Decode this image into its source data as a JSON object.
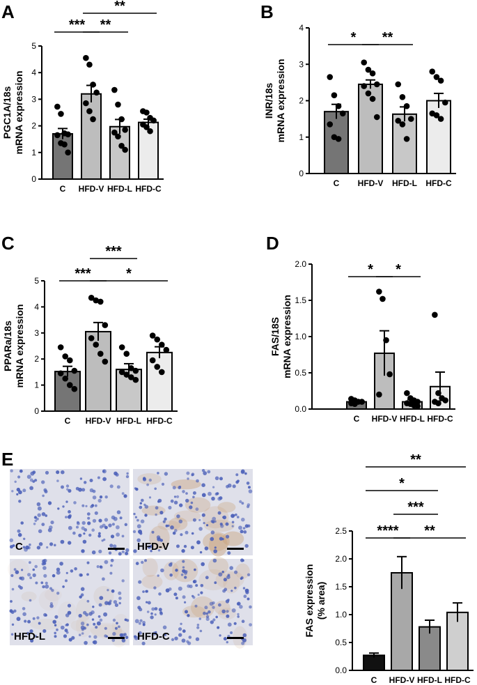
{
  "panel_letters": [
    "A",
    "B",
    "C",
    "D",
    "E"
  ],
  "micrograph_labels": [
    "C",
    "HFD-V",
    "HFD-L",
    "HFD-C"
  ],
  "colors": {
    "C": "#757575",
    "HFD-V": "#bdbdbd",
    "HFD-L": "#c8c8c8",
    "HFD-C": "#ececec",
    "E_C": "#111111",
    "E_HFD-V": "#a8a8a8",
    "E_HFD-L": "#8a8a8a",
    "E_HFD-C": "#cfcfcf",
    "tissue_bg": "#dfe0ea",
    "nuclei": "#4a5fb8",
    "stain": "#c9a27a"
  },
  "chart_data": [
    {
      "panel": "A",
      "type": "bar",
      "categories": [
        "C",
        "HFD-V",
        "HFD-L",
        "HFD-C"
      ],
      "ylabel": "PGC1A/18s\nmRNA expression",
      "ylim": [
        0,
        5
      ],
      "yticks": [
        0,
        1,
        2,
        3,
        4,
        5
      ],
      "values": [
        1.7,
        3.2,
        1.97,
        2.13
      ],
      "sem": [
        0.2,
        0.32,
        0.27,
        0.12
      ],
      "points": [
        [
          2.72,
          2.45,
          1.72,
          1.68,
          1.65,
          1.35,
          1.3,
          1.0
        ],
        [
          4.55,
          4.3,
          3.55,
          3.25,
          2.85,
          2.55,
          2.25
        ],
        [
          3.35,
          2.8,
          2.25,
          1.85,
          1.75,
          1.6,
          1.25,
          1.1
        ],
        [
          2.55,
          2.5,
          2.3,
          2.2,
          2.05,
          1.95,
          1.8
        ]
      ],
      "significance": [
        {
          "from": 0,
          "to": 1,
          "label": "***",
          "level": 0
        },
        {
          "from": 1,
          "to": 2,
          "label": "**",
          "level": 0
        },
        {
          "from": 1,
          "to": 3,
          "label": "**",
          "level": 1
        }
      ]
    },
    {
      "panel": "B",
      "type": "bar",
      "categories": [
        "C",
        "HFD-V",
        "HFD-L",
        "HFD-C"
      ],
      "ylabel": "INR/18s\nmRNA expression",
      "ylim": [
        0,
        4
      ],
      "yticks": [
        0,
        1,
        2,
        3,
        4
      ],
      "values": [
        1.7,
        2.45,
        1.63,
        2.0
      ],
      "sem": [
        0.2,
        0.12,
        0.2,
        0.2
      ],
      "points": [
        [
          2.65,
          2.15,
          1.85,
          1.65,
          1.35,
          1.0,
          0.95
        ],
        [
          3.05,
          2.85,
          2.75,
          2.45,
          2.4,
          2.2,
          2.05,
          1.55
        ],
        [
          2.45,
          2.1,
          1.85,
          1.5,
          1.45,
          1.35,
          0.95
        ],
        [
          2.8,
          2.65,
          2.55,
          1.95,
          1.65,
          1.6,
          1.5
        ]
      ],
      "significance": [
        {
          "from": 0,
          "to": 1,
          "label": "*",
          "level": 0
        },
        {
          "from": 1,
          "to": 2,
          "label": "**",
          "level": 0
        }
      ]
    },
    {
      "panel": "C",
      "type": "bar",
      "categories": [
        "C",
        "HFD-V",
        "HFD-L",
        "HFD-C"
      ],
      "ylabel": "PPARa/18s\nmRNA expression",
      "ylim": [
        0,
        5
      ],
      "yticks": [
        0,
        1,
        2,
        3,
        4,
        5
      ],
      "values": [
        1.52,
        3.05,
        1.6,
        2.25
      ],
      "sem": [
        0.2,
        0.35,
        0.22,
        0.22
      ],
      "points": [
        [
          2.45,
          2.1,
          1.95,
          1.55,
          1.45,
          1.25,
          1.0,
          0.85
        ],
        [
          4.35,
          4.25,
          4.2,
          3.3,
          2.8,
          2.55,
          2.2,
          1.9
        ],
        [
          2.45,
          2.2,
          1.65,
          1.55,
          1.5,
          1.4,
          1.3,
          1.2
        ],
        [
          2.9,
          2.75,
          2.55,
          2.35,
          1.95,
          1.7,
          1.5
        ]
      ],
      "significance": [
        {
          "from": 0,
          "to": 1,
          "label": "***",
          "level": 0
        },
        {
          "from": 1,
          "to": 3,
          "label": "*",
          "level": 0
        },
        {
          "from": 1,
          "to": 2,
          "label": "***",
          "level": 1
        }
      ]
    },
    {
      "panel": "D",
      "type": "bar",
      "categories": [
        "C",
        "HFD-V",
        "HFD-L",
        "HFD-C"
      ],
      "ylabel": "FAS/18S\nmRNA expression",
      "ylim": [
        0,
        2
      ],
      "yticks": [
        "0.0",
        "0.5",
        "1.0",
        "1.5",
        "2.0"
      ],
      "values": [
        0.1,
        0.77,
        0.1,
        0.31
      ],
      "sem": [
        0.02,
        0.31,
        0.03,
        0.2
      ],
      "points": [
        [
          0.14,
          0.12,
          0.1,
          0.1,
          0.08,
          0.07
        ],
        [
          1.62,
          1.52,
          0.95,
          0.48,
          0.2
        ],
        [
          0.22,
          0.15,
          0.12,
          0.1,
          0.08,
          0.07,
          0.05,
          0.04
        ],
        [
          1.3,
          0.22,
          0.15,
          0.12,
          0.1,
          0.08
        ]
      ],
      "significance": [
        {
          "from": 0,
          "to": 1,
          "label": "*",
          "level": 0
        },
        {
          "from": 1,
          "to": 2,
          "label": "*",
          "level": 0
        }
      ]
    },
    {
      "panel": "E",
      "type": "bar",
      "categories": [
        "C",
        "HFD-V",
        "HFD-L",
        "HFD-C"
      ],
      "ylabel": "FAS expression\n(% area)",
      "ylim": [
        0,
        2.5
      ],
      "yticks": [
        "0.0",
        "0.5",
        "1.0",
        "1.5",
        "2.0",
        "2.5"
      ],
      "values": [
        0.27,
        1.75,
        0.78,
        1.04
      ],
      "sem": [
        0.04,
        0.29,
        0.12,
        0.17
      ],
      "points": [
        [],
        [],
        [],
        []
      ],
      "significance": [
        {
          "from": 0,
          "to": 1,
          "label": "****",
          "level": 0
        },
        {
          "from": 1,
          "to": 3,
          "label": "**",
          "level": 0
        },
        {
          "from": 1,
          "to": 2,
          "label": "***",
          "level": 1
        },
        {
          "from": 0,
          "to": 2,
          "label": "*",
          "level": 2
        },
        {
          "from": 0,
          "to": 3,
          "label": "**",
          "level": 3
        }
      ]
    }
  ]
}
